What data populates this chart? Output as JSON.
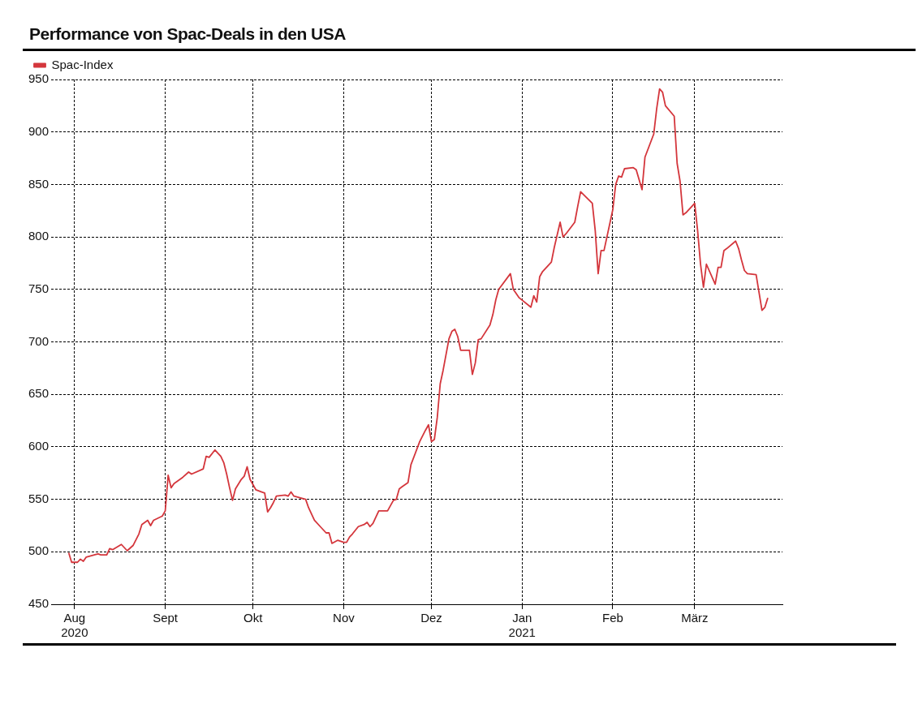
{
  "chart_data": {
    "type": "line",
    "title": "Performance von Spac-Deals in den USA",
    "legend": "top left",
    "grid": true,
    "marker": "none",
    "line_style": "solid",
    "xlim": [
      "2020-07-24",
      "2021-03-31"
    ],
    "xticks": [
      {
        "value": "2020-08-01",
        "label": "Aug\n2020"
      },
      {
        "value": "2020-09-01",
        "label": "Sept"
      },
      {
        "value": "2020-10-01",
        "label": "Okt"
      },
      {
        "value": "2020-11-01",
        "label": "Nov"
      },
      {
        "value": "2020-12-01",
        "label": "Dez"
      },
      {
        "value": "2021-01-01",
        "label": "Jan\n2021"
      },
      {
        "value": "2021-02-01",
        "label": "Feb"
      },
      {
        "value": "2021-03-01",
        "label": "März"
      }
    ],
    "ylim": [
      450,
      950
    ],
    "yticks": [
      450,
      500,
      550,
      600,
      650,
      700,
      750,
      800,
      850,
      900,
      950
    ],
    "x": [
      "2020-07-30",
      "2020-07-31",
      "2020-08-02",
      "2020-08-03",
      "2020-08-04",
      "2020-08-05",
      "2020-08-09",
      "2020-08-10",
      "2020-08-12",
      "2020-08-13",
      "2020-08-14",
      "2020-08-17",
      "2020-08-19",
      "2020-08-21",
      "2020-08-23",
      "2020-08-24",
      "2020-08-26",
      "2020-08-27",
      "2020-08-28",
      "2020-08-31",
      "2020-09-01",
      "2020-09-02",
      "2020-09-03",
      "2020-09-04",
      "2020-09-07",
      "2020-09-09",
      "2020-09-10",
      "2020-09-14",
      "2020-09-15",
      "2020-09-16",
      "2020-09-18",
      "2020-09-20",
      "2020-09-21",
      "2020-09-22",
      "2020-09-23",
      "2020-09-24",
      "2020-09-25",
      "2020-09-27",
      "2020-09-28",
      "2020-09-29",
      "2020-09-30",
      "2020-10-02",
      "2020-10-04",
      "2020-10-05",
      "2020-10-06",
      "2020-10-07",
      "2020-10-08",
      "2020-10-09",
      "2020-10-12",
      "2020-10-13",
      "2020-10-14",
      "2020-10-15",
      "2020-10-19",
      "2020-10-20",
      "2020-10-22",
      "2020-10-24",
      "2020-10-26",
      "2020-10-27",
      "2020-10-28",
      "2020-10-30",
      "2020-11-01",
      "2020-11-02",
      "2020-11-03",
      "2020-11-04",
      "2020-11-06",
      "2020-11-08",
      "2020-11-09",
      "2020-11-10",
      "2020-11-11",
      "2020-11-13",
      "2020-11-16",
      "2020-11-18",
      "2020-11-19",
      "2020-11-20",
      "2020-11-21",
      "2020-11-23",
      "2020-11-24",
      "2020-11-27",
      "2020-11-29",
      "2020-11-30",
      "2020-12-01",
      "2020-12-02",
      "2020-12-03",
      "2020-12-04",
      "2020-12-05",
      "2020-12-07",
      "2020-12-08",
      "2020-12-09",
      "2020-12-10",
      "2020-12-11",
      "2020-12-14",
      "2020-12-15",
      "2020-12-16",
      "2020-12-17",
      "2020-12-18",
      "2020-12-21",
      "2020-12-22",
      "2020-12-23",
      "2020-12-24",
      "2020-12-28",
      "2020-12-29",
      "2020-12-31",
      "2021-01-04",
      "2021-01-05",
      "2021-01-06",
      "2021-01-07",
      "2021-01-08",
      "2021-01-11",
      "2021-01-12",
      "2021-01-14",
      "2021-01-15",
      "2021-01-16",
      "2021-01-19",
      "2021-01-20",
      "2021-01-21",
      "2021-01-25",
      "2021-01-26",
      "2021-01-27",
      "2021-01-28",
      "2021-01-29",
      "2021-02-01",
      "2021-02-02",
      "2021-02-03",
      "2021-02-04",
      "2021-02-05",
      "2021-02-08",
      "2021-02-09",
      "2021-02-11",
      "2021-02-12",
      "2021-02-15",
      "2021-02-16",
      "2021-02-17",
      "2021-02-18",
      "2021-02-19",
      "2021-02-22",
      "2021-02-23",
      "2021-02-24",
      "2021-02-25",
      "2021-02-26",
      "2021-03-01",
      "2021-03-02",
      "2021-03-03",
      "2021-03-04",
      "2021-03-05",
      "2021-03-08",
      "2021-03-09",
      "2021-03-10",
      "2021-03-11",
      "2021-03-12",
      "2021-03-15",
      "2021-03-16",
      "2021-03-17",
      "2021-03-18",
      "2021-03-19",
      "2021-03-22",
      "2021-03-23",
      "2021-03-24",
      "2021-03-25",
      "2021-03-26"
    ],
    "series": [
      {
        "name": "Spac-Index",
        "color": "#d4363c",
        "values": [
          499,
          490,
          490,
          493,
          491,
          495,
          498,
          497,
          497,
          503,
          502,
          507,
          501,
          506,
          517,
          526,
          530,
          525,
          530,
          534,
          539,
          573,
          561,
          565,
          571,
          576,
          574,
          579,
          591,
          590,
          597,
          591,
          585,
          574,
          561,
          549,
          560,
          569,
          572,
          581,
          569,
          559,
          557,
          556,
          538,
          542,
          547,
          553,
          554,
          553,
          557,
          553,
          550,
          542,
          530,
          524,
          518,
          518,
          508,
          511,
          509,
          509,
          514,
          517,
          524,
          526,
          528,
          524,
          527,
          539,
          539,
          549,
          550,
          560,
          562,
          566,
          583,
          605,
          616,
          621,
          605,
          607,
          628,
          660,
          673,
          703,
          710,
          712,
          705,
          692,
          692,
          669,
          680,
          702,
          703,
          716,
          726,
          740,
          750,
          765,
          750,
          742,
          733,
          744,
          738,
          762,
          767,
          776,
          790,
          814,
          800,
          803,
          814,
          829,
          843,
          832,
          806,
          765,
          787,
          787,
          826,
          850,
          858,
          857,
          865,
          866,
          864,
          845,
          876,
          898,
          922,
          941,
          938,
          925,
          915,
          870,
          853,
          821,
          823,
          832,
          806,
          774,
          752,
          774,
          755,
          771,
          771,
          787,
          789,
          796,
          789,
          778,
          768,
          765,
          764,
          747,
          730,
          733,
          742
        ]
      }
    ]
  }
}
